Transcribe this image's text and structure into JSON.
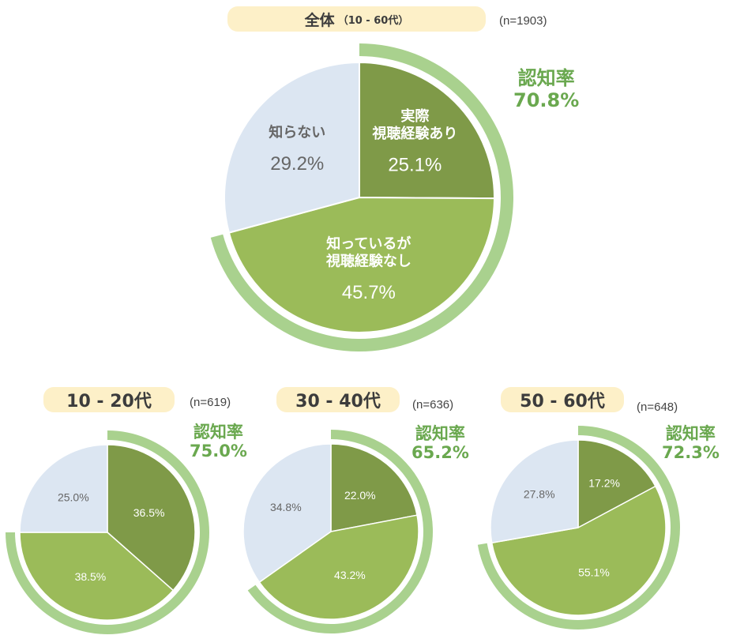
{
  "colors": {
    "watched": "#7f9a48",
    "known_not_watched": "#9bbb59",
    "unknown": "#dce6f2",
    "recognition_ring": "#a9d18e",
    "rate_text": "#6aa84f",
    "pill_bg": "#fdf0c8"
  },
  "chart_data": [
    {
      "type": "pie",
      "title": "全体",
      "title_sub": "（10 - 60代）",
      "n_label": "(n=1903)",
      "rate_label": "認知率",
      "rate_value": "70.8%",
      "slices": [
        {
          "label": "実際 視聴経験あり",
          "label_lines": [
            "実際",
            "視聴経験あり"
          ],
          "value": 25.1,
          "value_label": "25.1%",
          "color": "#7f9a48"
        },
        {
          "label": "知っているが 視聴経験なし",
          "label_lines": [
            "知っているが",
            "視聴経験なし"
          ],
          "value": 45.7,
          "value_label": "45.7%",
          "color": "#9bbb59"
        },
        {
          "label": "知らない",
          "label_lines": [
            "知らない"
          ],
          "value": 29.2,
          "value_label": "29.2%",
          "color": "#dce6f2"
        }
      ],
      "ring_value": 70.8
    },
    {
      "type": "pie",
      "title": "10 - 20代",
      "n_label": "(n=619)",
      "rate_label": "認知率",
      "rate_value": "75.0%",
      "slices": [
        {
          "value": 36.5,
          "value_label": "36.5%",
          "color": "#7f9a48"
        },
        {
          "value": 38.5,
          "value_label": "38.5%",
          "color": "#9bbb59"
        },
        {
          "value": 25.0,
          "value_label": "25.0%",
          "color": "#dce6f2"
        }
      ],
      "ring_value": 75.0
    },
    {
      "type": "pie",
      "title": "30 - 40代",
      "n_label": "(n=636)",
      "rate_label": "認知率",
      "rate_value": "65.2%",
      "slices": [
        {
          "value": 22.0,
          "value_label": "22.0%",
          "color": "#7f9a48"
        },
        {
          "value": 43.2,
          "value_label": "43.2%",
          "color": "#9bbb59"
        },
        {
          "value": 34.8,
          "value_label": "34.8%",
          "color": "#dce6f2"
        }
      ],
      "ring_value": 65.2
    },
    {
      "type": "pie",
      "title": "50 - 60代",
      "n_label": "(n=648)",
      "rate_label": "認知率",
      "rate_value": "72.3%",
      "slices": [
        {
          "value": 17.2,
          "value_label": "17.2%",
          "color": "#7f9a48"
        },
        {
          "value": 55.1,
          "value_label": "55.1%",
          "color": "#9bbb59"
        },
        {
          "value": 27.8,
          "value_label": "27.8%",
          "color": "#dce6f2"
        }
      ],
      "ring_value": 72.3
    }
  ]
}
